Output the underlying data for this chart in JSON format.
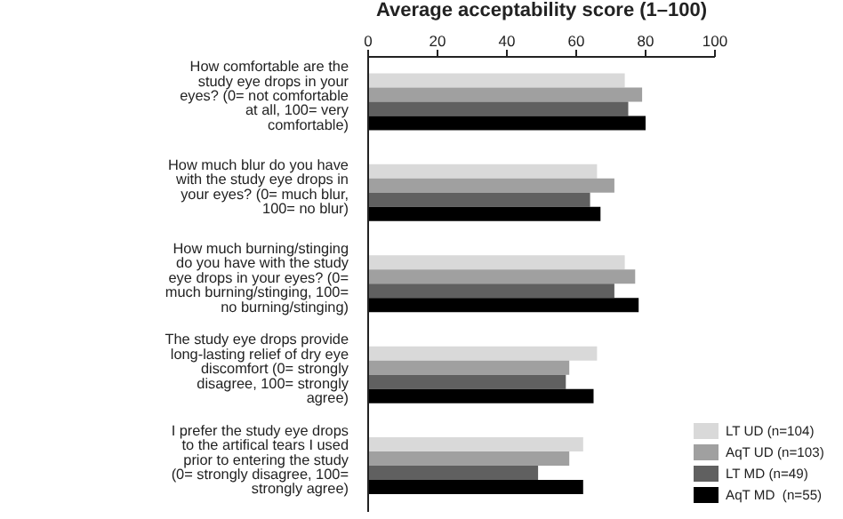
{
  "chart_data": {
    "type": "bar",
    "orientation": "horizontal",
    "title": "Average acceptability score (1–100)",
    "categories": [
      "How comfortable are the study eye drops in your eyes? (0= not comfortable at all, 100= very comfortable)",
      "How much blur do you have with the study eye drops in your eyes? (0= much blur, 100= no blur)",
      "How much burning/stinging do you have with the study eye drops in your eyes? (0= much burning/stinging, 100= no burning/stinging)",
      "The study eye drops provide long-lasting relief of dry eye discomfort (0= strongly disagree, 100= strongly agree)",
      "I prefer the study eye drops to the artifical tears I used prior to entering the study (0= strongly disagree, 100= strongly agree)"
    ],
    "series": [
      {
        "name": "LT UD (n=104)",
        "color": "#d9d9d9",
        "values": [
          74,
          66,
          74,
          66,
          62
        ]
      },
      {
        "name": "AqT UD (n=103)",
        "color": "#a0a0a0",
        "values": [
          79,
          71,
          77,
          58,
          58
        ]
      },
      {
        "name": "LT MD (n=49)",
        "color": "#606060",
        "values": [
          75,
          64,
          71,
          57,
          49
        ]
      },
      {
        "name": "AqT MD  (n=55)",
        "color": "#000000",
        "values": [
          80,
          67,
          78,
          65,
          62
        ]
      }
    ],
    "xlim": [
      0,
      100
    ],
    "xticks": [
      0,
      20,
      40,
      60,
      80,
      100
    ],
    "legend": "bottom right",
    "grid": false
  }
}
